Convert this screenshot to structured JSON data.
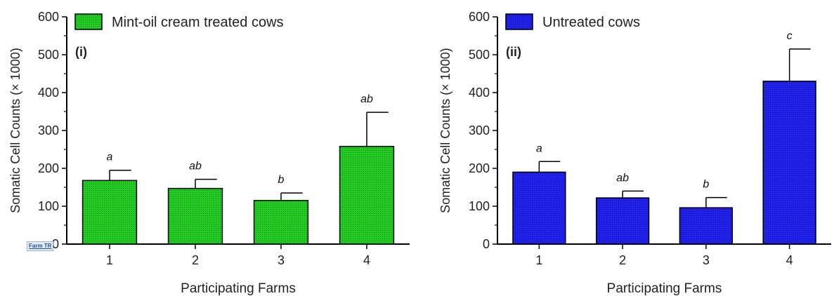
{
  "chart_data": [
    {
      "type": "bar",
      "panel_label": "(i)",
      "legend": "Mint-oil cream treated cows",
      "legend_placement": "top-left",
      "color": "#22cc22",
      "categories": [
        "1",
        "2",
        "3",
        "4"
      ],
      "values": [
        168,
        147,
        115,
        258
      ],
      "errors": [
        27,
        24,
        20,
        90
      ],
      "significance": [
        "a",
        "ab",
        "b",
        "ab"
      ],
      "xlabel": "Participating Farms",
      "ylabel": "Somatic Cell Counts (× 1000)",
      "ylim": [
        0,
        600
      ],
      "yticks": [
        "0",
        "100",
        "200",
        "300",
        "400",
        "500",
        "600"
      ],
      "grid": false
    },
    {
      "type": "bar",
      "panel_label": "(ii)",
      "legend": "Untreated cows",
      "legend_placement": "top-left",
      "color": "#2222ee",
      "categories": [
        "1",
        "2",
        "3",
        "4"
      ],
      "values": [
        190,
        122,
        96,
        430
      ],
      "errors": [
        28,
        18,
        27,
        85
      ],
      "significance": [
        "a",
        "ab",
        "b",
        "c"
      ],
      "xlabel": "Participating Farms",
      "ylabel": "Somatic Cell Counts (× 1000)",
      "ylim": [
        0,
        600
      ],
      "yticks": [
        "0",
        "100",
        "200",
        "300",
        "400",
        "500",
        "600"
      ],
      "grid": false
    }
  ],
  "farm_tag": "Farm TR"
}
